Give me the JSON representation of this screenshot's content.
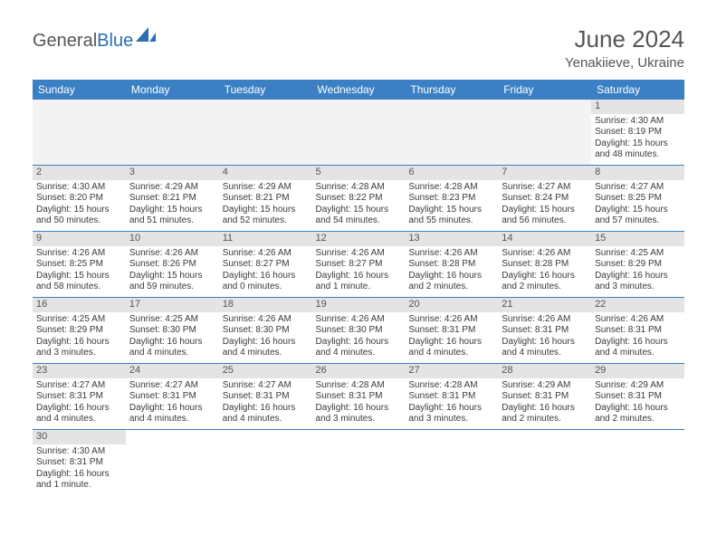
{
  "brand": {
    "general": "General",
    "blue": "Blue"
  },
  "title": "June 2024",
  "location": "Yenakiieve, Ukraine",
  "colors": {
    "header_bg": "#3b80c4",
    "header_fg": "#ffffff",
    "daynum_bg": "#e4e4e4",
    "blank_bg": "#f3f3f3",
    "rule": "#3b80c4",
    "text": "#3a3a3a",
    "title": "#555555"
  },
  "day_labels": [
    "Sunday",
    "Monday",
    "Tuesday",
    "Wednesday",
    "Thursday",
    "Friday",
    "Saturday"
  ],
  "weeks": [
    [
      null,
      null,
      null,
      null,
      null,
      null,
      {
        "n": "1",
        "sr": "Sunrise: 4:30 AM",
        "ss": "Sunset: 8:19 PM",
        "dl": "Daylight: 15 hours and 48 minutes."
      }
    ],
    [
      {
        "n": "2",
        "sr": "Sunrise: 4:30 AM",
        "ss": "Sunset: 8:20 PM",
        "dl": "Daylight: 15 hours and 50 minutes."
      },
      {
        "n": "3",
        "sr": "Sunrise: 4:29 AM",
        "ss": "Sunset: 8:21 PM",
        "dl": "Daylight: 15 hours and 51 minutes."
      },
      {
        "n": "4",
        "sr": "Sunrise: 4:29 AM",
        "ss": "Sunset: 8:21 PM",
        "dl": "Daylight: 15 hours and 52 minutes."
      },
      {
        "n": "5",
        "sr": "Sunrise: 4:28 AM",
        "ss": "Sunset: 8:22 PM",
        "dl": "Daylight: 15 hours and 54 minutes."
      },
      {
        "n": "6",
        "sr": "Sunrise: 4:28 AM",
        "ss": "Sunset: 8:23 PM",
        "dl": "Daylight: 15 hours and 55 minutes."
      },
      {
        "n": "7",
        "sr": "Sunrise: 4:27 AM",
        "ss": "Sunset: 8:24 PM",
        "dl": "Daylight: 15 hours and 56 minutes."
      },
      {
        "n": "8",
        "sr": "Sunrise: 4:27 AM",
        "ss": "Sunset: 8:25 PM",
        "dl": "Daylight: 15 hours and 57 minutes."
      }
    ],
    [
      {
        "n": "9",
        "sr": "Sunrise: 4:26 AM",
        "ss": "Sunset: 8:25 PM",
        "dl": "Daylight: 15 hours and 58 minutes."
      },
      {
        "n": "10",
        "sr": "Sunrise: 4:26 AM",
        "ss": "Sunset: 8:26 PM",
        "dl": "Daylight: 15 hours and 59 minutes."
      },
      {
        "n": "11",
        "sr": "Sunrise: 4:26 AM",
        "ss": "Sunset: 8:27 PM",
        "dl": "Daylight: 16 hours and 0 minutes."
      },
      {
        "n": "12",
        "sr": "Sunrise: 4:26 AM",
        "ss": "Sunset: 8:27 PM",
        "dl": "Daylight: 16 hours and 1 minute."
      },
      {
        "n": "13",
        "sr": "Sunrise: 4:26 AM",
        "ss": "Sunset: 8:28 PM",
        "dl": "Daylight: 16 hours and 2 minutes."
      },
      {
        "n": "14",
        "sr": "Sunrise: 4:26 AM",
        "ss": "Sunset: 8:28 PM",
        "dl": "Daylight: 16 hours and 2 minutes."
      },
      {
        "n": "15",
        "sr": "Sunrise: 4:25 AM",
        "ss": "Sunset: 8:29 PM",
        "dl": "Daylight: 16 hours and 3 minutes."
      }
    ],
    [
      {
        "n": "16",
        "sr": "Sunrise: 4:25 AM",
        "ss": "Sunset: 8:29 PM",
        "dl": "Daylight: 16 hours and 3 minutes."
      },
      {
        "n": "17",
        "sr": "Sunrise: 4:25 AM",
        "ss": "Sunset: 8:30 PM",
        "dl": "Daylight: 16 hours and 4 minutes."
      },
      {
        "n": "18",
        "sr": "Sunrise: 4:26 AM",
        "ss": "Sunset: 8:30 PM",
        "dl": "Daylight: 16 hours and 4 minutes."
      },
      {
        "n": "19",
        "sr": "Sunrise: 4:26 AM",
        "ss": "Sunset: 8:30 PM",
        "dl": "Daylight: 16 hours and 4 minutes."
      },
      {
        "n": "20",
        "sr": "Sunrise: 4:26 AM",
        "ss": "Sunset: 8:31 PM",
        "dl": "Daylight: 16 hours and 4 minutes."
      },
      {
        "n": "21",
        "sr": "Sunrise: 4:26 AM",
        "ss": "Sunset: 8:31 PM",
        "dl": "Daylight: 16 hours and 4 minutes."
      },
      {
        "n": "22",
        "sr": "Sunrise: 4:26 AM",
        "ss": "Sunset: 8:31 PM",
        "dl": "Daylight: 16 hours and 4 minutes."
      }
    ],
    [
      {
        "n": "23",
        "sr": "Sunrise: 4:27 AM",
        "ss": "Sunset: 8:31 PM",
        "dl": "Daylight: 16 hours and 4 minutes."
      },
      {
        "n": "24",
        "sr": "Sunrise: 4:27 AM",
        "ss": "Sunset: 8:31 PM",
        "dl": "Daylight: 16 hours and 4 minutes."
      },
      {
        "n": "25",
        "sr": "Sunrise: 4:27 AM",
        "ss": "Sunset: 8:31 PM",
        "dl": "Daylight: 16 hours and 4 minutes."
      },
      {
        "n": "26",
        "sr": "Sunrise: 4:28 AM",
        "ss": "Sunset: 8:31 PM",
        "dl": "Daylight: 16 hours and 3 minutes."
      },
      {
        "n": "27",
        "sr": "Sunrise: 4:28 AM",
        "ss": "Sunset: 8:31 PM",
        "dl": "Daylight: 16 hours and 3 minutes."
      },
      {
        "n": "28",
        "sr": "Sunrise: 4:29 AM",
        "ss": "Sunset: 8:31 PM",
        "dl": "Daylight: 16 hours and 2 minutes."
      },
      {
        "n": "29",
        "sr": "Sunrise: 4:29 AM",
        "ss": "Sunset: 8:31 PM",
        "dl": "Daylight: 16 hours and 2 minutes."
      }
    ],
    [
      {
        "n": "30",
        "sr": "Sunrise: 4:30 AM",
        "ss": "Sunset: 8:31 PM",
        "dl": "Daylight: 16 hours and 1 minute."
      },
      null,
      null,
      null,
      null,
      null,
      null
    ]
  ]
}
